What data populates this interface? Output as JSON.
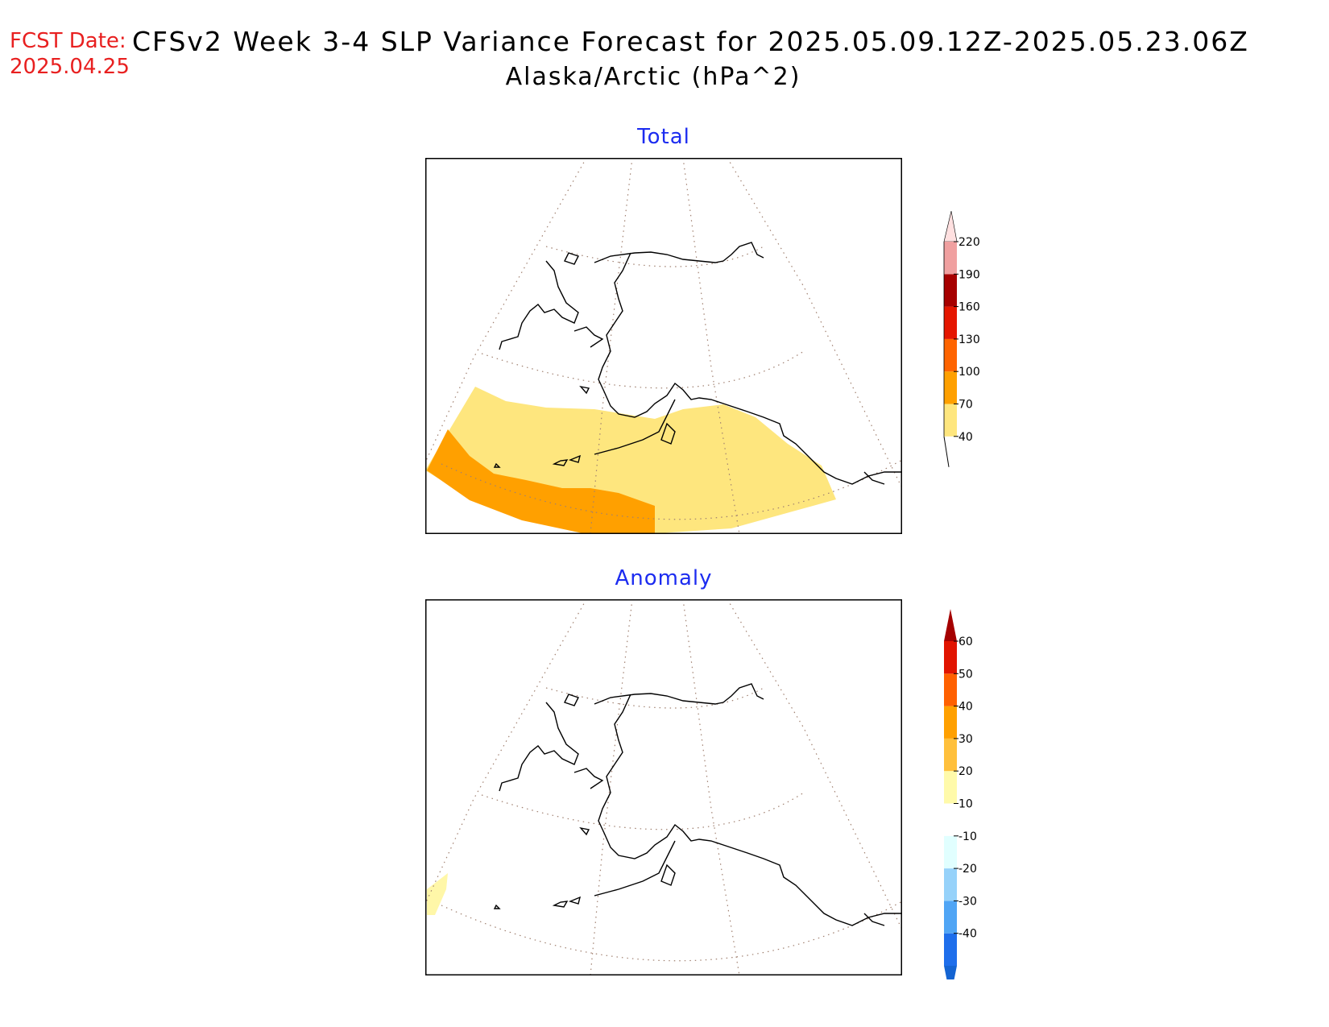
{
  "header": {
    "fcst_label": "FCST Date:",
    "fcst_date": "2025.04.25",
    "title": "CFSv2 Week 3-4 SLP Variance Forecast for 2025.05.09.12Z-2025.05.23.06Z",
    "subtitle": "Alaska/Arctic (hPa^2)"
  },
  "panels": {
    "total": {
      "title": "Total",
      "shaded_regions": [
        {
          "range": "40-70",
          "color": "#fee67e"
        },
        {
          "range": "70-100",
          "color": "#ffa000"
        }
      ]
    },
    "anomaly": {
      "title": "Anomaly",
      "shaded_regions": [
        {
          "range": "10-20",
          "color": "#fff7a8"
        }
      ]
    }
  },
  "colorbars": {
    "total": {
      "colors": [
        "#fee67e",
        "#ffa000",
        "#ff6400",
        "#e51600",
        "#a70000",
        "#f0a0a0",
        "#ffe0e0"
      ],
      "labels": [
        "40",
        "70",
        "100",
        "130",
        "160",
        "190",
        "220"
      ]
    },
    "anomaly": {
      "colors": [
        "#1464d2",
        "#1e6eeb",
        "#50a5f5",
        "#96d2fa",
        "#e1ffff",
        "#ffffff",
        "#fffaaa",
        "#ffc03c",
        "#ffa000",
        "#ff6000",
        "#e11400",
        "#a50000"
      ],
      "labels": [
        "-40",
        "-30",
        "-20",
        "-10",
        "10",
        "20",
        "30",
        "40",
        "50",
        "60"
      ]
    }
  },
  "colors": {
    "fcst_text": "#e82020",
    "panel_title": "#1c2cf0"
  }
}
